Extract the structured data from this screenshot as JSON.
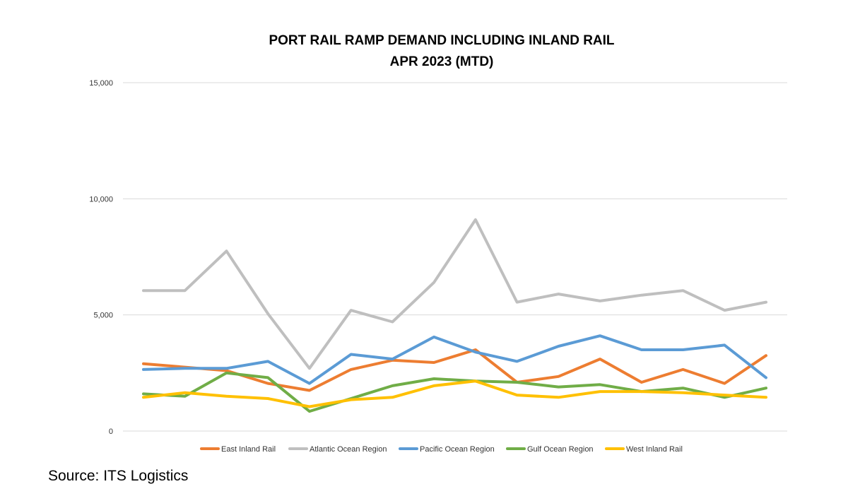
{
  "chart_data": {
    "type": "line",
    "title_line1": "PORT RAIL RAMP DEMAND INCLUDING INLAND RAIL",
    "title_line2": "APR 2023 (MTD)",
    "ylim": [
      0,
      15000
    ],
    "yticks": [
      0,
      5000,
      10000,
      15000
    ],
    "ytick_labels": [
      "0",
      "5,000",
      "10,000",
      "15,000"
    ],
    "grid": true,
    "legend_position": "bottom",
    "x_count": 16,
    "series": [
      {
        "name": "East Inland Rail",
        "color": "#ED7D31",
        "values": [
          2900,
          2750,
          2600,
          2050,
          1750,
          2650,
          3050,
          2950,
          3500,
          2100,
          2350,
          3100,
          2100,
          2650,
          2050,
          3250
        ]
      },
      {
        "name": "Atlantic Ocean Region",
        "color": "#BFBFBF",
        "values": [
          6050,
          6050,
          7750,
          5050,
          2700,
          5200,
          4700,
          6400,
          9100,
          5550,
          5900,
          5600,
          5850,
          6050,
          5200,
          5550
        ]
      },
      {
        "name": "Pacific Ocean Region",
        "color": "#5B9BD5",
        "values": [
          2650,
          2700,
          2700,
          3000,
          2050,
          3300,
          3100,
          4050,
          3400,
          3000,
          3650,
          4100,
          3500,
          3500,
          3700,
          2300
        ]
      },
      {
        "name": "Gulf Ocean Region",
        "color": "#70AD47",
        "values": [
          1600,
          1500,
          2500,
          2300,
          850,
          1400,
          1950,
          2250,
          2150,
          2100,
          1900,
          2000,
          1700,
          1850,
          1450,
          1850
        ]
      },
      {
        "name": "West Inland Rail",
        "color": "#FFC000",
        "values": [
          1450,
          1650,
          1500,
          1400,
          1050,
          1350,
          1450,
          1950,
          2150,
          1550,
          1450,
          1700,
          1700,
          1650,
          1550,
          1450
        ]
      }
    ]
  },
  "source_text": "Source: ITS Logistics"
}
